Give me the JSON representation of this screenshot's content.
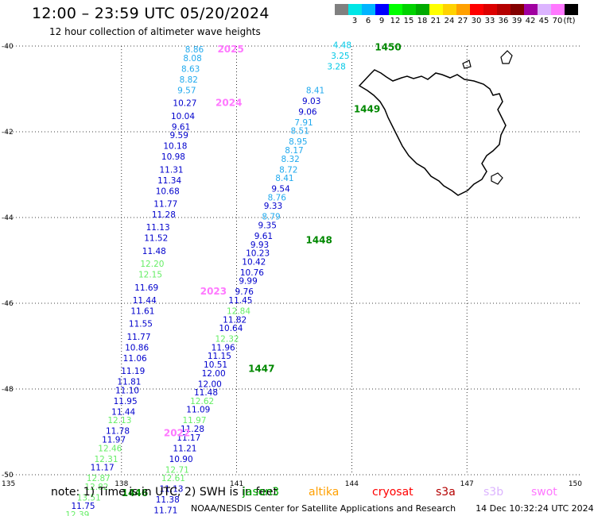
{
  "header": {
    "title": "12:00 – 23:59 UTC 05/20/2024",
    "subtitle": "12 hour collection of altimeter wave heights"
  },
  "legend": {
    "unit": "(ft)",
    "items": [
      {
        "label": "",
        "color": "#808080"
      },
      {
        "label": "3",
        "color": "#00e6e6"
      },
      {
        "label": "6",
        "color": "#00b4ff"
      },
      {
        "label": "9",
        "color": "#0000ff"
      },
      {
        "label": "12",
        "color": "#00ff00"
      },
      {
        "label": "15",
        "color": "#00d200"
      },
      {
        "label": "18",
        "color": "#00aa00"
      },
      {
        "label": "21",
        "color": "#ffff00"
      },
      {
        "label": "24",
        "color": "#ffd200"
      },
      {
        "label": "27",
        "color": "#ffa000"
      },
      {
        "label": "30",
        "color": "#ff0000"
      },
      {
        "label": "33",
        "color": "#dc0000"
      },
      {
        "label": "36",
        "color": "#b40000"
      },
      {
        "label": "39",
        "color": "#820000"
      },
      {
        "label": "42",
        "color": "#a000a0"
      },
      {
        "label": "45",
        "color": "#dcb4ff"
      },
      {
        "label": "70",
        "color": "#ff78ff"
      },
      {
        "label": "",
        "color": "#000000"
      }
    ]
  },
  "footer": {
    "note": "note:  1) Time is in UTC; 2) SWH is in feet",
    "satellites": [
      {
        "name": "jason3",
        "color": "#00aa00"
      },
      {
        "name": "altika",
        "color": "#ffa000"
      },
      {
        "name": "cryosat",
        "color": "#ff0000"
      },
      {
        "name": "s3a",
        "color": "#b40000"
      },
      {
        "name": "s3b",
        "color": "#dcb4ff"
      },
      {
        "name": "swot",
        "color": "#ff78ff"
      }
    ],
    "credit": "NOAA/NESDIS Center for Satellite Applications and Research",
    "timestamp": "14 Dec 10:32:24 UTC 2024"
  },
  "chart_data": {
    "type": "scatter",
    "xlim": [
      135,
      150
    ],
    "ylim": [
      -50,
      -40
    ],
    "x_ticks": [
      "135",
      "138",
      "141",
      "144",
      "147",
      "150"
    ],
    "y_ticks": [
      "-40",
      "-42",
      "-44",
      "-46",
      "-48",
      "-50"
    ],
    "grid": true,
    "colors": {
      "blue": "#0000cc",
      "green": "#66ee66",
      "cyan": "#00c8e6",
      "sky": "#22aaee",
      "time": "#008800",
      "swot": "#ff78ff"
    },
    "tracks": [
      {
        "name": "west",
        "points": [
          {
            "x": 139.9,
            "y": -40.15,
            "v": "8.86",
            "c": "sky"
          },
          {
            "x": 139.85,
            "y": -40.35,
            "v": "8.08",
            "c": "sky"
          },
          {
            "x": 139.8,
            "y": -40.6,
            "v": "8.63",
            "c": "sky"
          },
          {
            "x": 139.75,
            "y": -40.85,
            "v": "8.82",
            "c": "sky"
          },
          {
            "x": 139.7,
            "y": -41.1,
            "v": "9.57",
            "c": "sky"
          },
          {
            "x": 139.65,
            "y": -41.4,
            "v": "10.27",
            "c": "blue"
          },
          {
            "x": 139.6,
            "y": -41.7,
            "v": "10.04",
            "c": "blue"
          },
          {
            "x": 139.55,
            "y": -41.95,
            "v": "9.61",
            "c": "blue"
          },
          {
            "x": 139.5,
            "y": -42.15,
            "v": "9.59",
            "c": "blue"
          },
          {
            "x": 139.4,
            "y": -42.4,
            "v": "10.18",
            "c": "blue"
          },
          {
            "x": 139.35,
            "y": -42.65,
            "v": "10.98",
            "c": "blue"
          },
          {
            "x": 139.3,
            "y": -42.95,
            "v": "11.31",
            "c": "blue"
          },
          {
            "x": 139.25,
            "y": -43.2,
            "v": "11.34",
            "c": "blue"
          },
          {
            "x": 139.2,
            "y": -43.45,
            "v": "10.68",
            "c": "blue"
          },
          {
            "x": 139.15,
            "y": -43.75,
            "v": "11.77",
            "c": "blue"
          },
          {
            "x": 139.1,
            "y": -44.0,
            "v": "11.28",
            "c": "blue"
          },
          {
            "x": 138.95,
            "y": -44.3,
            "v": "11.13",
            "c": "blue"
          },
          {
            "x": 138.9,
            "y": -44.55,
            "v": "11.52",
            "c": "blue"
          },
          {
            "x": 138.85,
            "y": -44.85,
            "v": "11.48",
            "c": "blue"
          },
          {
            "x": 138.8,
            "y": -45.15,
            "v": "12.20",
            "c": "green"
          },
          {
            "x": 138.75,
            "y": -45.4,
            "v": "12.15",
            "c": "green"
          },
          {
            "x": 138.65,
            "y": -45.7,
            "v": "11.69",
            "c": "blue"
          },
          {
            "x": 138.6,
            "y": -46.0,
            "v": "11.44",
            "c": "blue"
          },
          {
            "x": 138.55,
            "y": -46.25,
            "v": "11.61",
            "c": "blue"
          },
          {
            "x": 138.5,
            "y": -46.55,
            "v": "11.55",
            "c": "blue"
          },
          {
            "x": 138.45,
            "y": -46.85,
            "v": "11.77",
            "c": "blue"
          },
          {
            "x": 138.4,
            "y": -47.1,
            "v": "10.86",
            "c": "blue"
          },
          {
            "x": 138.35,
            "y": -47.35,
            "v": "11.06",
            "c": "blue"
          },
          {
            "x": 138.3,
            "y": -47.65,
            "v": "11.19",
            "c": "blue"
          },
          {
            "x": 138.2,
            "y": -47.9,
            "v": "11.81",
            "c": "blue"
          },
          {
            "x": 138.15,
            "y": -48.1,
            "v": "11.10",
            "c": "blue"
          },
          {
            "x": 138.1,
            "y": -48.35,
            "v": "11.95",
            "c": "blue"
          },
          {
            "x": 138.05,
            "y": -48.6,
            "v": "11.44",
            "c": "blue"
          },
          {
            "x": 137.95,
            "y": -48.8,
            "v": "12.13",
            "c": "green"
          },
          {
            "x": 137.9,
            "y": -49.05,
            "v": "11.78",
            "c": "blue"
          },
          {
            "x": 137.8,
            "y": -49.25,
            "v": "11.97",
            "c": "blue"
          },
          {
            "x": 137.7,
            "y": -49.45,
            "v": "12.46",
            "c": "green"
          },
          {
            "x": 137.6,
            "y": -49.7,
            "v": "12.31",
            "c": "green"
          },
          {
            "x": 137.5,
            "y": -49.9,
            "v": "11.17",
            "c": "blue"
          },
          {
            "x": 137.4,
            "y": -50.15,
            "v": "12.87",
            "c": "green"
          },
          {
            "x": 137.35,
            "y": -50.35,
            "v": "12.82",
            "c": "green"
          },
          {
            "x": 137.15,
            "y": -50.6,
            "v": "13.51",
            "c": "green"
          },
          {
            "x": 137.0,
            "y": -50.8,
            "v": "11.75",
            "c": "blue"
          },
          {
            "x": 136.85,
            "y": -51.0,
            "v": "12.39",
            "c": "green"
          }
        ]
      },
      {
        "name": "east",
        "points": [
          {
            "x": 143.75,
            "y": -40.05,
            "v": "4.48",
            "c": "cyan"
          },
          {
            "x": 143.7,
            "y": -40.3,
            "v": "3.25",
            "c": "cyan"
          },
          {
            "x": 143.6,
            "y": -40.55,
            "v": "3.28",
            "c": "cyan"
          },
          {
            "x": 143.05,
            "y": -41.1,
            "v": "8.41",
            "c": "sky"
          },
          {
            "x": 142.95,
            "y": -41.35,
            "v": "9.03",
            "c": "blue"
          },
          {
            "x": 142.85,
            "y": -41.6,
            "v": "9.06",
            "c": "blue"
          },
          {
            "x": 142.75,
            "y": -41.85,
            "v": "7.91",
            "c": "sky"
          },
          {
            "x": 142.65,
            "y": -42.05,
            "v": "8.51",
            "c": "sky"
          },
          {
            "x": 142.6,
            "y": -42.3,
            "v": "8.95",
            "c": "sky"
          },
          {
            "x": 142.5,
            "y": -42.5,
            "v": "8.17",
            "c": "sky"
          },
          {
            "x": 142.4,
            "y": -42.7,
            "v": "8.32",
            "c": "sky"
          },
          {
            "x": 142.35,
            "y": -42.95,
            "v": "8.72",
            "c": "sky"
          },
          {
            "x": 142.25,
            "y": -43.15,
            "v": "8.41",
            "c": "sky"
          },
          {
            "x": 142.15,
            "y": -43.4,
            "v": "9.54",
            "c": "blue"
          },
          {
            "x": 142.05,
            "y": -43.6,
            "v": "8.76",
            "c": "sky"
          },
          {
            "x": 141.95,
            "y": -43.8,
            "v": "9.33",
            "c": "blue"
          },
          {
            "x": 141.9,
            "y": -44.05,
            "v": "8.79",
            "c": "sky"
          },
          {
            "x": 141.8,
            "y": -44.25,
            "v": "9.35",
            "c": "blue"
          },
          {
            "x": 141.7,
            "y": -44.5,
            "v": "9.61",
            "c": "blue"
          },
          {
            "x": 141.6,
            "y": -44.7,
            "v": "9.93",
            "c": "blue"
          },
          {
            "x": 141.55,
            "y": -44.9,
            "v": "10.23",
            "c": "blue"
          },
          {
            "x": 141.45,
            "y": -45.1,
            "v": "10.42",
            "c": "blue"
          },
          {
            "x": 141.4,
            "y": -45.35,
            "v": "10.76",
            "c": "blue"
          },
          {
            "x": 141.3,
            "y": -45.55,
            "v": "9.99",
            "c": "blue"
          },
          {
            "x": 141.2,
            "y": -45.8,
            "v": "9.76",
            "c": "blue"
          },
          {
            "x": 141.1,
            "y": -46.0,
            "v": "11.45",
            "c": "blue"
          },
          {
            "x": 141.05,
            "y": -46.25,
            "v": "12.84",
            "c": "green"
          },
          {
            "x": 140.95,
            "y": -46.45,
            "v": "11.82",
            "c": "blue"
          },
          {
            "x": 140.85,
            "y": -46.65,
            "v": "10.64",
            "c": "blue"
          },
          {
            "x": 140.75,
            "y": -46.9,
            "v": "12.32",
            "c": "green"
          },
          {
            "x": 140.65,
            "y": -47.1,
            "v": "11.96",
            "c": "blue"
          },
          {
            "x": 140.55,
            "y": -47.3,
            "v": "11.15",
            "c": "blue"
          },
          {
            "x": 140.45,
            "y": -47.5,
            "v": "10.51",
            "c": "blue"
          },
          {
            "x": 140.4,
            "y": -47.7,
            "v": "12.00",
            "c": "blue"
          },
          {
            "x": 140.3,
            "y": -47.95,
            "v": "12.00",
            "c": "blue"
          },
          {
            "x": 140.2,
            "y": -48.15,
            "v": "11.48",
            "c": "blue"
          },
          {
            "x": 140.1,
            "y": -48.35,
            "v": "12.62",
            "c": "green"
          },
          {
            "x": 140.0,
            "y": -48.55,
            "v": "11.09",
            "c": "blue"
          },
          {
            "x": 139.9,
            "y": -48.8,
            "v": "11.97",
            "c": "green"
          },
          {
            "x": 139.85,
            "y": -49.0,
            "v": "11.28",
            "c": "blue"
          },
          {
            "x": 139.75,
            "y": -49.2,
            "v": "11.17",
            "c": "blue"
          },
          {
            "x": 139.65,
            "y": -49.45,
            "v": "11.21",
            "c": "blue"
          },
          {
            "x": 139.55,
            "y": -49.7,
            "v": "10.90",
            "c": "blue"
          },
          {
            "x": 139.45,
            "y": -49.95,
            "v": "12.71",
            "c": "green"
          },
          {
            "x": 139.35,
            "y": -50.15,
            "v": "12.61",
            "c": "green"
          },
          {
            "x": 139.3,
            "y": -50.4,
            "v": "11.13",
            "c": "blue"
          },
          {
            "x": 139.2,
            "y": -50.65,
            "v": "11.38",
            "c": "blue"
          },
          {
            "x": 139.15,
            "y": -50.9,
            "v": "11.71",
            "c": "blue"
          }
        ]
      }
    ],
    "annotations": [
      {
        "x": 140.5,
        "y": -40.15,
        "text": "2025",
        "c": "swot"
      },
      {
        "x": 140.45,
        "y": -41.4,
        "text": "2024",
        "c": "swot"
      },
      {
        "x": 140.05,
        "y": -45.8,
        "text": "2023",
        "c": "swot"
      },
      {
        "x": 139.1,
        "y": -49.1,
        "text": "2022",
        "c": "swot"
      },
      {
        "x": 144.6,
        "y": -40.1,
        "text": "1450",
        "c": "time"
      },
      {
        "x": 144.05,
        "y": -41.55,
        "text": "1449",
        "c": "time"
      },
      {
        "x": 142.8,
        "y": -44.6,
        "text": "1448",
        "c": "time"
      },
      {
        "x": 141.3,
        "y": -47.6,
        "text": "1447",
        "c": "time"
      },
      {
        "x": 138.0,
        "y": -50.5,
        "text": "1446",
        "c": "time"
      }
    ]
  }
}
